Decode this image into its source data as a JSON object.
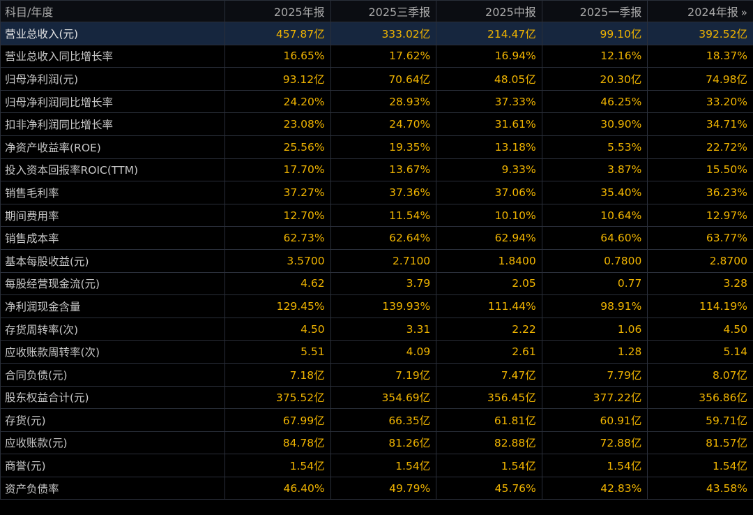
{
  "table": {
    "header_label": "科目/年度",
    "columns": [
      "2025年报",
      "2025三季报",
      "2025中报",
      "2025一季报",
      "2024年报"
    ],
    "more_icon": "»",
    "colors": {
      "background": "#000000",
      "value_text": "#f0b400",
      "label_text": "#c8c8c8",
      "header_text": "#a9a9a9",
      "highlight_row": "#16263e",
      "grid_line": "#2a2f3a"
    },
    "highlighted_row_index": 0,
    "rows": [
      {
        "label": "营业总收入(元)",
        "values": [
          "457.87亿",
          "333.02亿",
          "214.47亿",
          "99.10亿",
          "392.52亿"
        ]
      },
      {
        "label": "营业总收入同比增长率",
        "values": [
          "16.65%",
          "17.62%",
          "16.94%",
          "12.16%",
          "18.37%"
        ]
      },
      {
        "label": "归母净利润(元)",
        "values": [
          "93.12亿",
          "70.64亿",
          "48.05亿",
          "20.30亿",
          "74.98亿"
        ]
      },
      {
        "label": "归母净利润同比增长率",
        "values": [
          "24.20%",
          "28.93%",
          "37.33%",
          "46.25%",
          "33.20%"
        ]
      },
      {
        "label": "扣非净利润同比增长率",
        "values": [
          "23.08%",
          "24.70%",
          "31.61%",
          "30.90%",
          "34.71%"
        ]
      },
      {
        "label": "净资产收益率(ROE)",
        "values": [
          "25.56%",
          "19.35%",
          "13.18%",
          "5.53%",
          "22.72%"
        ]
      },
      {
        "label": "投入资本回报率ROIC(TTM)",
        "values": [
          "17.70%",
          "13.67%",
          "9.33%",
          "3.87%",
          "15.50%"
        ]
      },
      {
        "label": "销售毛利率",
        "values": [
          "37.27%",
          "37.36%",
          "37.06%",
          "35.40%",
          "36.23%"
        ]
      },
      {
        "label": "期间费用率",
        "values": [
          "12.70%",
          "11.54%",
          "10.10%",
          "10.64%",
          "12.97%"
        ]
      },
      {
        "label": "销售成本率",
        "values": [
          "62.73%",
          "62.64%",
          "62.94%",
          "64.60%",
          "63.77%"
        ]
      },
      {
        "label": "基本每股收益(元)",
        "values": [
          "3.5700",
          "2.7100",
          "1.8400",
          "0.7800",
          "2.8700"
        ]
      },
      {
        "label": "每股经营现金流(元)",
        "values": [
          "4.62",
          "3.79",
          "2.05",
          "0.77",
          "3.28"
        ]
      },
      {
        "label": "净利润现金含量",
        "values": [
          "129.45%",
          "139.93%",
          "111.44%",
          "98.91%",
          "114.19%"
        ]
      },
      {
        "label": "存货周转率(次)",
        "values": [
          "4.50",
          "3.31",
          "2.22",
          "1.06",
          "4.50"
        ]
      },
      {
        "label": "应收账款周转率(次)",
        "values": [
          "5.51",
          "4.09",
          "2.61",
          "1.28",
          "5.14"
        ]
      },
      {
        "label": "合同负债(元)",
        "values": [
          "7.18亿",
          "7.19亿",
          "7.47亿",
          "7.79亿",
          "8.07亿"
        ]
      },
      {
        "label": "股东权益合计(元)",
        "values": [
          "375.52亿",
          "354.69亿",
          "356.45亿",
          "377.22亿",
          "356.86亿"
        ]
      },
      {
        "label": "存货(元)",
        "values": [
          "67.99亿",
          "66.35亿",
          "61.81亿",
          "60.91亿",
          "59.71亿"
        ]
      },
      {
        "label": "应收账款(元)",
        "values": [
          "84.78亿",
          "81.26亿",
          "82.88亿",
          "72.88亿",
          "81.57亿"
        ]
      },
      {
        "label": "商誉(元)",
        "values": [
          "1.54亿",
          "1.54亿",
          "1.54亿",
          "1.54亿",
          "1.54亿"
        ]
      },
      {
        "label": "资产负债率",
        "values": [
          "46.40%",
          "49.79%",
          "45.76%",
          "42.83%",
          "43.58%"
        ]
      }
    ]
  }
}
